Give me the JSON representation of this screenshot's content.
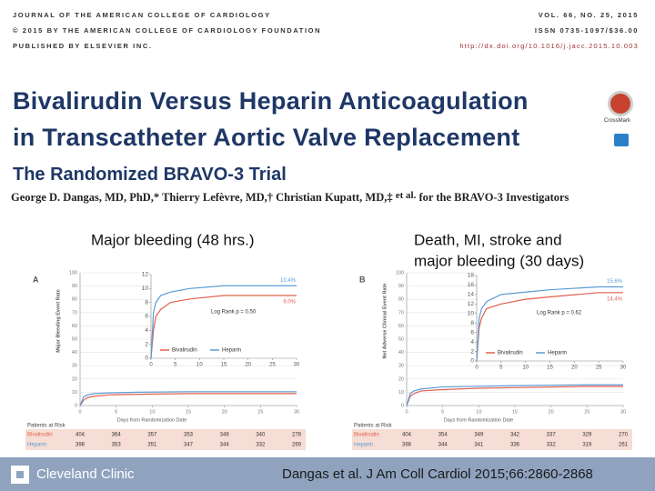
{
  "journal_header": {
    "left_lines": [
      "JOURNAL OF THE AMERICAN COLLEGE OF CARDIOLOGY",
      "© 2015 BY THE AMERICAN COLLEGE OF CARDIOLOGY FOUNDATION",
      "PUBLISHED BY ELSEVIER INC."
    ],
    "right_lines": [
      "VOL. 66, NO. 25, 2015",
      "ISSN 0735-1097/$36.00",
      "http://dx.doi.org/10.1016/j.jacc.2015.10.003"
    ]
  },
  "article": {
    "title_lines": [
      "Bivalirudin Versus Heparin Anticoagulation",
      "in Transcatheter Aortic Valve Replacement"
    ],
    "subtitle": "The Randomized BRAVO-3 Trial",
    "authors": "George D. Dangas, MD, PhD,* Thierry Lefèvre, MD,† Christian Kupatt, MD,‡",
    "et_al": "et al.",
    "group": "for the BRAVO-3 Investigators",
    "crossmark": "CrossMark"
  },
  "chart_data": [
    {
      "type": "line",
      "panel_label": "A",
      "caption": [
        "Major bleeding (48 hrs.)"
      ],
      "ylabel": "Major Bleeding Event Rate",
      "xlabel": "Days from Randomization Date",
      "xlim": [
        0,
        30
      ],
      "xticks": [
        0,
        5,
        10,
        15,
        20,
        25,
        30
      ],
      "ylim": [
        0,
        100
      ],
      "yticks": [
        0,
        10,
        20,
        30,
        40,
        50,
        60,
        70,
        80,
        90,
        100
      ],
      "inset_ylim": [
        0,
        12
      ],
      "inset_yticks": [
        0,
        2,
        4,
        6,
        8,
        10,
        12
      ],
      "annotation": "Log Rank p = 0.50",
      "series": [
        {
          "name": "Bivalirudin",
          "color": "#e0614f",
          "x": [
            0,
            0.5,
            1,
            2,
            4,
            8,
            15,
            30
          ],
          "values": [
            0,
            4,
            6,
            7,
            8,
            8.5,
            9.0,
            9.0
          ],
          "end_label": "9.0%"
        },
        {
          "name": "Heparin",
          "color": "#5b9bd5",
          "x": [
            0,
            0.5,
            1,
            2,
            4,
            8,
            15,
            30
          ],
          "values": [
            0,
            6.5,
            8,
            9,
            9.5,
            10,
            10.4,
            10.4
          ],
          "end_label": "10.4%"
        }
      ],
      "risk_table": {
        "title": "Patients at Risk",
        "rows": [
          {
            "name": "Bivalirudin",
            "counts": [
              "404",
              "364",
              "357",
              "353",
              "348",
              "340",
              "278"
            ]
          },
          {
            "name": "Heparin",
            "counts": [
              "398",
              "353",
              "351",
              "347",
              "344",
              "332",
              "269"
            ]
          }
        ]
      }
    },
    {
      "type": "line",
      "panel_label": "B",
      "caption": [
        "Death, MI, stroke and",
        "major bleeding (30 days)"
      ],
      "ylabel": "Net Adverse Clinical Event Rate",
      "xlabel": "Days from Randomization Date",
      "xlim": [
        0,
        30
      ],
      "xticks": [
        0,
        5,
        10,
        15,
        20,
        25,
        30
      ],
      "ylim": [
        0,
        100
      ],
      "yticks": [
        0,
        10,
        20,
        30,
        40,
        50,
        60,
        70,
        80,
        90,
        100
      ],
      "inset_ylim": [
        0,
        18
      ],
      "inset_yticks": [
        0,
        2,
        4,
        6,
        8,
        10,
        12,
        14,
        16,
        18
      ],
      "annotation": "Log Rank p = 0.62",
      "series": [
        {
          "name": "Bivalirudin",
          "color": "#e0614f",
          "x": [
            0,
            0.5,
            1,
            2,
            5,
            10,
            15,
            25,
            30
          ],
          "values": [
            0,
            7,
            9,
            11,
            12,
            13,
            13.5,
            14.4,
            14.4
          ],
          "end_label": "14.4%"
        },
        {
          "name": "Heparin",
          "color": "#5b9bd5",
          "x": [
            0,
            0.5,
            1,
            2,
            5,
            10,
            15,
            25,
            30
          ],
          "values": [
            0,
            9,
            11,
            12.5,
            14,
            14.5,
            15,
            15.6,
            15.6
          ],
          "end_label": "15.6%"
        }
      ],
      "risk_table": {
        "title": "Patients at Risk",
        "rows": [
          {
            "name": "Bivalirudin",
            "counts": [
              "404",
              "354",
              "349",
              "342",
              "337",
              "329",
              "270"
            ]
          },
          {
            "name": "Heparin",
            "counts": [
              "398",
              "344",
              "341",
              "336",
              "332",
              "319",
              "261"
            ]
          }
        ]
      }
    }
  ],
  "footer": {
    "logo_text": "Cleveland Clinic",
    "citation": "Dangas et al. J Am Coll Cardiol 2015;66:2860-2868"
  }
}
